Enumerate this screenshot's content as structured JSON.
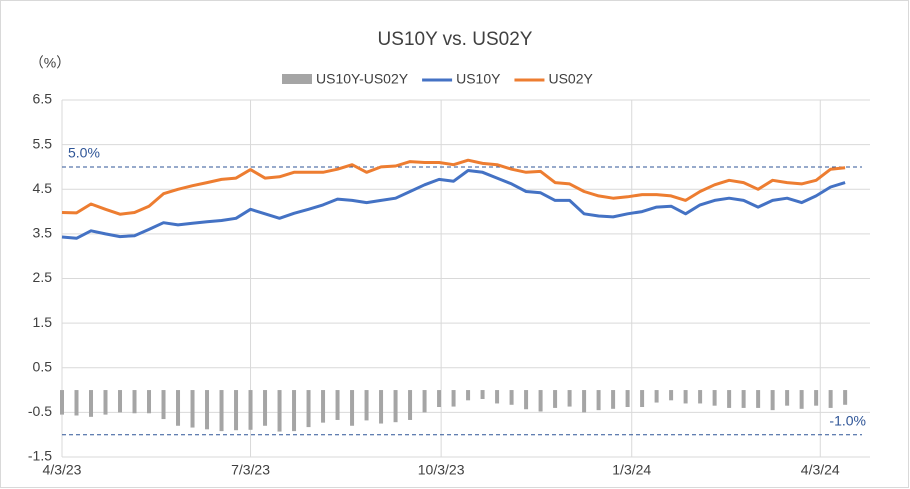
{
  "chart_data": {
    "type": "line",
    "title": "US10Y vs. US02Y",
    "y_label": "（%）",
    "x": [
      "4/3/23",
      "4/10/23",
      "4/17/23",
      "4/24/23",
      "5/1/23",
      "5/8/23",
      "5/15/23",
      "5/22/23",
      "5/29/23",
      "6/5/23",
      "6/12/23",
      "6/19/23",
      "6/26/23",
      "7/3/23",
      "7/10/23",
      "7/17/23",
      "7/24/23",
      "7/31/23",
      "8/7/23",
      "8/14/23",
      "8/21/23",
      "8/28/23",
      "9/4/23",
      "9/11/23",
      "9/18/23",
      "9/25/23",
      "10/2/23",
      "10/9/23",
      "10/16/23",
      "10/23/23",
      "10/30/23",
      "11/6/23",
      "11/13/23",
      "11/20/23",
      "11/27/23",
      "12/4/23",
      "12/11/23",
      "12/18/23",
      "12/25/23",
      "1/1/24",
      "1/8/24",
      "1/15/24",
      "1/22/24",
      "1/29/24",
      "2/5/24",
      "2/12/24",
      "2/19/24",
      "2/26/24",
      "3/4/24",
      "3/11/24",
      "3/18/24",
      "3/25/24",
      "4/1/24",
      "4/8/24",
      "4/15/24"
    ],
    "series": [
      {
        "name": "US10Y-US02Y",
        "kind": "bar",
        "color": "#a5a5a5",
        "values": [
          -0.55,
          -0.57,
          -0.6,
          -0.55,
          -0.5,
          -0.52,
          -0.52,
          -0.65,
          -0.8,
          -0.84,
          -0.88,
          -0.92,
          -0.9,
          -0.89,
          -0.8,
          -0.93,
          -0.92,
          -0.83,
          -0.73,
          -0.67,
          -0.8,
          -0.68,
          -0.75,
          -0.72,
          -0.67,
          -0.5,
          -0.38,
          -0.37,
          -0.23,
          -0.2,
          -0.3,
          -0.33,
          -0.43,
          -0.48,
          -0.4,
          -0.37,
          -0.5,
          -0.45,
          -0.42,
          -0.38,
          -0.38,
          -0.28,
          -0.23,
          -0.3,
          -0.3,
          -0.35,
          -0.4,
          -0.4,
          -0.4,
          -0.45,
          -0.35,
          -0.42,
          -0.35,
          -0.4,
          -0.33
        ]
      },
      {
        "name": "US10Y",
        "kind": "line",
        "color": "#4472c4",
        "values": [
          3.43,
          3.4,
          3.57,
          3.5,
          3.44,
          3.46,
          3.6,
          3.75,
          3.7,
          3.74,
          3.77,
          3.8,
          3.85,
          4.05,
          3.95,
          3.85,
          3.96,
          4.05,
          4.15,
          4.28,
          4.25,
          4.2,
          4.25,
          4.3,
          4.45,
          4.6,
          4.72,
          4.68,
          4.92,
          4.88,
          4.75,
          4.62,
          4.45,
          4.42,
          4.25,
          4.25,
          3.95,
          3.9,
          3.88,
          3.95,
          4.0,
          4.1,
          4.12,
          3.95,
          4.15,
          4.25,
          4.3,
          4.25,
          4.1,
          4.25,
          4.3,
          4.2,
          4.35,
          4.55,
          4.65
        ]
      },
      {
        "name": "US02Y",
        "kind": "line",
        "color": "#ed7d31",
        "values": [
          3.98,
          3.97,
          4.17,
          4.05,
          3.94,
          3.98,
          4.12,
          4.4,
          4.5,
          4.58,
          4.65,
          4.72,
          4.75,
          4.94,
          4.75,
          4.78,
          4.88,
          4.88,
          4.88,
          4.95,
          5.05,
          4.88,
          5.0,
          5.02,
          5.12,
          5.1,
          5.1,
          5.05,
          5.15,
          5.08,
          5.05,
          4.95,
          4.88,
          4.9,
          4.65,
          4.62,
          4.45,
          4.35,
          4.3,
          4.33,
          4.38,
          4.38,
          4.35,
          4.25,
          4.45,
          4.6,
          4.7,
          4.65,
          4.5,
          4.7,
          4.65,
          4.62,
          4.7,
          4.95,
          4.98
        ]
      }
    ],
    "xlim": [
      "4/3/23",
      "4/27/24"
    ],
    "xticks": [
      "4/3/23",
      "7/3/23",
      "10/3/23",
      "1/3/24",
      "4/3/24"
    ],
    "ylim": [
      -1.5,
      6.5
    ],
    "yticks": [
      -1.5,
      -0.5,
      0.5,
      1.5,
      2.5,
      3.5,
      4.5,
      5.5,
      6.5
    ],
    "reference_lines": [
      {
        "value": 5.0,
        "label": "5.0%"
      },
      {
        "value": -1.0,
        "label": "-1.0%"
      }
    ],
    "reference_color": "#2f5597",
    "grid": true,
    "legend": "top"
  }
}
